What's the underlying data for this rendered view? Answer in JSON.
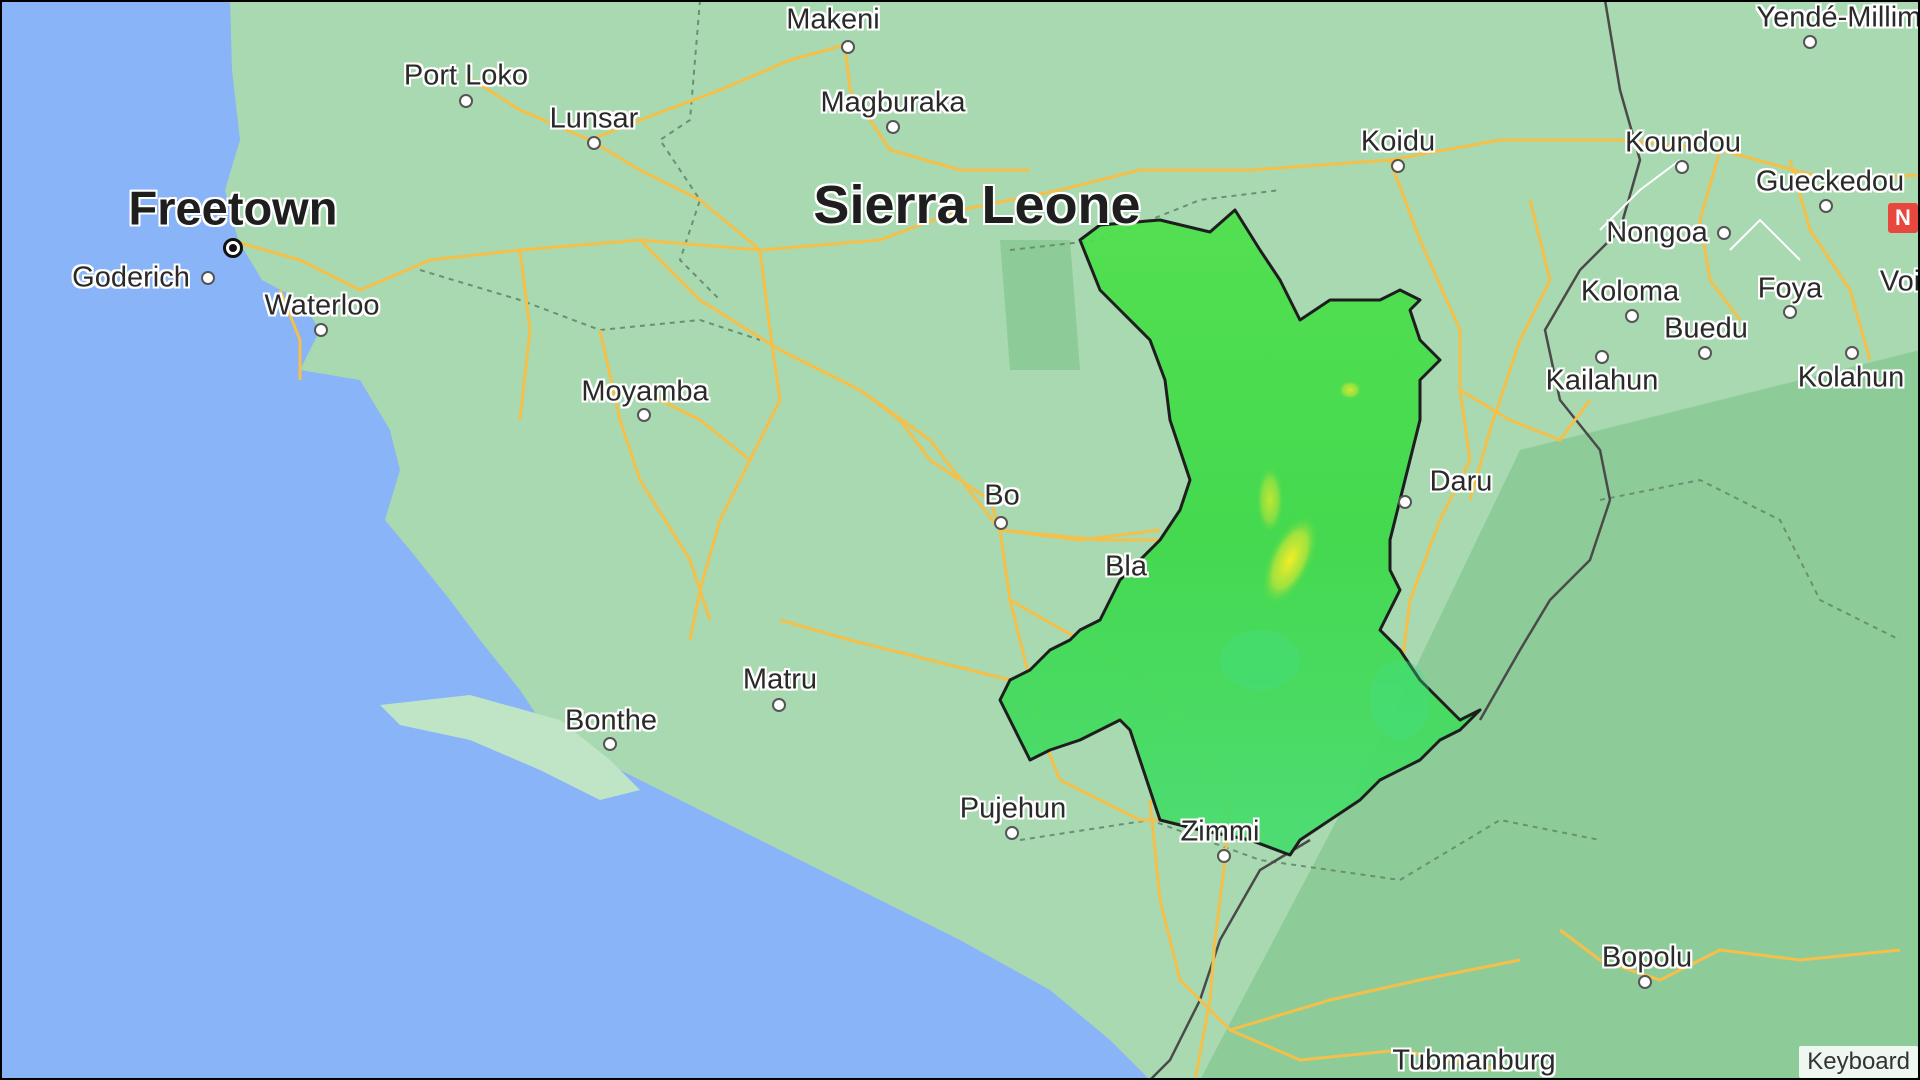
{
  "map": {
    "country_label": "Sierra Leone",
    "capital": "Freetown",
    "places": [
      {
        "name": "Makeni"
      },
      {
        "name": "Port Loko"
      },
      {
        "name": "Lunsar"
      },
      {
        "name": "Magburaka"
      },
      {
        "name": "Goderich"
      },
      {
        "name": "Waterloo"
      },
      {
        "name": "Moyamba"
      },
      {
        "name": "Bo"
      },
      {
        "name": "Matru"
      },
      {
        "name": "Bonthe"
      },
      {
        "name": "Pujehun"
      },
      {
        "name": "Zimmi"
      },
      {
        "name": "Bla"
      },
      {
        "name": "Koidu"
      },
      {
        "name": "Koundou"
      },
      {
        "name": "Yendé-Millimou"
      },
      {
        "name": "Gueckedou"
      },
      {
        "name": "Nongoa"
      },
      {
        "name": "Koloma"
      },
      {
        "name": "Foya"
      },
      {
        "name": "Voi"
      },
      {
        "name": "Buedu"
      },
      {
        "name": "Kailahun"
      },
      {
        "name": "Kolahun"
      },
      {
        "name": "Daru"
      },
      {
        "name": "Bopolu"
      },
      {
        "name": "Tubmanburg"
      }
    ],
    "route_badge": "N",
    "attribution": "Keyboard",
    "colors": {
      "ocean": "#8ab4f8",
      "land": "#a9d9b0",
      "roads": "#f4c04a",
      "overlay_low": "#2fd84a",
      "overlay_high": "#e6e11d"
    }
  }
}
